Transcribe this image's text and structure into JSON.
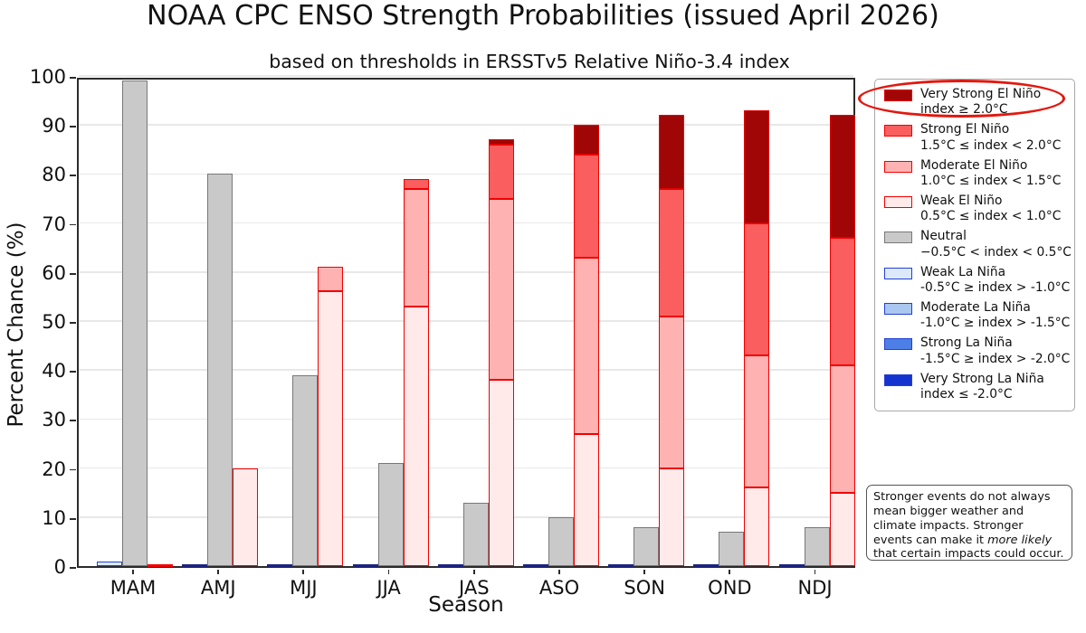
{
  "title": "NOAA CPC ENSO Strength Probabilities (issued April 2026)",
  "subtitle": "based on thresholds in ERSSTv5 Relative Niño-3.4 index",
  "axes": {
    "ylabel": "Percent Chance (%)",
    "xlabel": "Season",
    "yticks": [
      0,
      10,
      20,
      30,
      40,
      50,
      60,
      70,
      80,
      90,
      100
    ],
    "ylim": [
      0,
      100
    ],
    "grid": "horizontal"
  },
  "chart_data": {
    "type": "bar",
    "stacked": true,
    "title": "NOAA CPC ENSO Strength Probabilities (issued April 2026)",
    "subtitle": "based on thresholds in ERSSTv5 Relative Niño-3.4 index",
    "xlabel": "Season",
    "ylabel": "Percent Chance (%)",
    "ylim": [
      0,
      100
    ],
    "legend_position": "upper right, outside axes",
    "categories": [
      "MAM",
      "AMJ",
      "MJJ",
      "JJA",
      "JAS",
      "ASO",
      "SON",
      "OND",
      "NDJ"
    ],
    "series": [
      {
        "name": "Weak La Niña",
        "stack": "la_nina",
        "fill": "#dce9fa",
        "edge": "#2440d4",
        "values": [
          1,
          0,
          0,
          0,
          0,
          0,
          0,
          0,
          0
        ]
      },
      {
        "name": "Moderate La Niña",
        "stack": "la_nina",
        "fill": "#a9c7f1",
        "edge": "#2440d4",
        "values": [
          0,
          0,
          0,
          0,
          0,
          0,
          0,
          0,
          0
        ]
      },
      {
        "name": "Strong La Niña",
        "stack": "la_nina",
        "fill": "#4d7fe6",
        "edge": "#2440d4",
        "values": [
          0,
          0,
          0,
          0,
          0,
          0,
          0,
          0,
          0
        ]
      },
      {
        "name": "Very Strong La Niña",
        "stack": "la_nina",
        "fill": "#1534cf",
        "edge": "#2440d4",
        "values": [
          0,
          0,
          0,
          0,
          0,
          0,
          0,
          0,
          0
        ]
      },
      {
        "name": "Neutral",
        "stack": "neutral",
        "fill": "#c9c9c9",
        "edge": "#787878",
        "values": [
          99,
          80,
          39,
          21,
          13,
          10,
          8,
          7,
          8
        ]
      },
      {
        "name": "Weak El Niño",
        "stack": "el_nino",
        "fill": "#ffe9e9",
        "edge": "#f10000",
        "values": [
          0,
          20,
          56,
          53,
          38,
          27,
          20,
          16,
          15
        ]
      },
      {
        "name": "Moderate El Niño",
        "stack": "el_nino",
        "fill": "#ffb2b2",
        "edge": "#f10000",
        "values": [
          0,
          0,
          5,
          24,
          37,
          36,
          31,
          27,
          26
        ]
      },
      {
        "name": "Strong El Niño",
        "stack": "el_nino",
        "fill": "#fb5e5e",
        "edge": "#f10000",
        "values": [
          0,
          0,
          0,
          2,
          11,
          21,
          26,
          27,
          26
        ]
      },
      {
        "name": "Very Strong El Niño",
        "stack": "el_nino",
        "fill": "#a00606",
        "edge": "#e00000",
        "values": [
          0,
          0,
          0,
          0,
          1,
          6,
          15,
          23,
          25
        ]
      }
    ],
    "zero_line_colors": {
      "la_nina": "#1b2380",
      "el_nino": "#f10000"
    }
  },
  "legend": {
    "items": [
      {
        "line1": "Very Strong El Niño",
        "line2": "index ≥ 2.0°C",
        "fill": "#a00606",
        "edge": "#e00000"
      },
      {
        "line1": "Strong El Niño",
        "line2": "1.5°C ≤ index < 2.0°C",
        "fill": "#fb5e5e",
        "edge": "#f10000"
      },
      {
        "line1": "Moderate El Niño",
        "line2": "1.0°C ≤ index < 1.5°C",
        "fill": "#ffb2b2",
        "edge": "#f10000"
      },
      {
        "line1": "Weak El Niño",
        "line2": "0.5°C ≤ index < 1.0°C",
        "fill": "#ffe9e9",
        "edge": "#f10000"
      },
      {
        "line1": "Neutral",
        "line2": "−0.5°C < index < 0.5°C",
        "fill": "#c9c9c9",
        "edge": "#787878"
      },
      {
        "line1": "Weak La Niña",
        "line2": "-0.5°C ≥ index > -1.0°C",
        "fill": "#dce9fa",
        "edge": "#2440d4"
      },
      {
        "line1": "Moderate La Niña",
        "line2": "-1.0°C ≥ index > -1.5°C",
        "fill": "#a9c7f1",
        "edge": "#2440d4"
      },
      {
        "line1": "Strong La Niña",
        "line2": "-1.5°C ≥ index > -2.0°C",
        "fill": "#4d7fe6",
        "edge": "#2440d4"
      },
      {
        "line1": "Very Strong La Niña",
        "line2": "index ≤ -2.0°C",
        "fill": "#1534cf",
        "edge": "#2440d4"
      }
    ],
    "highlight_ellipse_color": "#e3170d"
  },
  "note": {
    "text_before": "Stronger events do not always mean bigger weather and climate impacts. Stronger events can make it ",
    "italic": "more likely",
    "text_after": " that certain impacts could occur."
  }
}
